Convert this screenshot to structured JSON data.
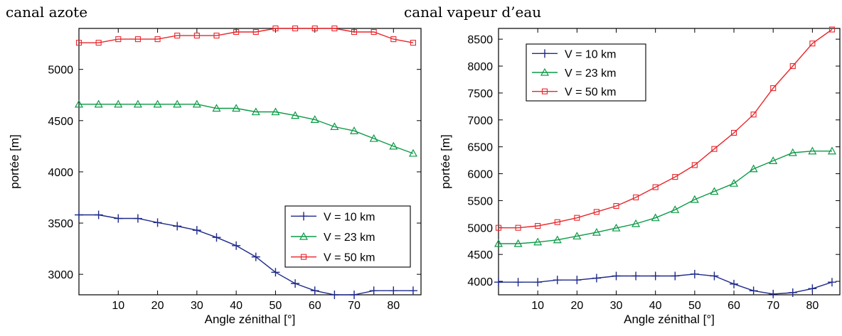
{
  "chart_data": [
    {
      "type": "line",
      "title": "canal azote",
      "xlabel": "Angle zénithal [°]",
      "ylabel": "portée [m]",
      "xlim": [
        0,
        87
      ],
      "ylim": [
        2800,
        5400
      ],
      "xticks": [
        10,
        20,
        30,
        40,
        50,
        60,
        70,
        80
      ],
      "yticks": [
        3000,
        3500,
        4000,
        4500,
        5000
      ],
      "legend_position": "lower-right",
      "x": [
        0,
        5,
        10,
        15,
        20,
        25,
        30,
        35,
        40,
        45,
        50,
        55,
        60,
        65,
        70,
        75,
        80,
        85
      ],
      "series": [
        {
          "name": "V = 10 km",
          "color": "#1f2a8a",
          "marker": "plus",
          "values": [
            3580,
            3580,
            3545,
            3545,
            3505,
            3470,
            3430,
            3360,
            3280,
            3170,
            3020,
            2910,
            2840,
            2800,
            2800,
            2840,
            2840,
            2840
          ]
        },
        {
          "name": "V = 23 km",
          "color": "#0b9a45",
          "marker": "triangle",
          "values": [
            4660,
            4660,
            4660,
            4660,
            4660,
            4660,
            4660,
            4620,
            4620,
            4585,
            4585,
            4550,
            4510,
            4440,
            4400,
            4325,
            4250,
            4180
          ]
        },
        {
          "name": "V = 50 km",
          "color": "#e8262b",
          "marker": "square",
          "values": [
            5260,
            5260,
            5295,
            5295,
            5295,
            5330,
            5330,
            5330,
            5365,
            5365,
            5400,
            5400,
            5400,
            5400,
            5365,
            5365,
            5295,
            5260
          ]
        }
      ]
    },
    {
      "type": "line",
      "title": "canal vapeur d’eau",
      "xlabel": "Angle zénithal [°]",
      "ylabel": "portée [m]",
      "xlim": [
        0,
        87
      ],
      "ylim": [
        3750,
        8700
      ],
      "xticks": [
        10,
        20,
        30,
        40,
        50,
        60,
        70,
        80
      ],
      "yticks": [
        4000,
        4500,
        5000,
        5500,
        6000,
        6500,
        7000,
        7500,
        8000,
        8500
      ],
      "legend_position": "upper-left",
      "x": [
        0,
        5,
        10,
        15,
        20,
        25,
        30,
        35,
        40,
        45,
        50,
        55,
        60,
        65,
        70,
        75,
        80,
        85
      ],
      "series": [
        {
          "name": "V = 10 km",
          "color": "#1f2a8a",
          "marker": "plus",
          "values": [
            3985,
            3985,
            3985,
            4025,
            4025,
            4060,
            4100,
            4100,
            4100,
            4100,
            4135,
            4100,
            3950,
            3825,
            3765,
            3790,
            3865,
            3985
          ]
        },
        {
          "name": "V = 23 km",
          "color": "#0b9a45",
          "marker": "triangle",
          "values": [
            4700,
            4700,
            4730,
            4770,
            4840,
            4910,
            4990,
            5070,
            5180,
            5330,
            5520,
            5670,
            5820,
            6090,
            6240,
            6390,
            6420,
            6420
          ]
        },
        {
          "name": "V = 50 km",
          "color": "#e8262b",
          "marker": "square",
          "values": [
            4995,
            4995,
            5030,
            5100,
            5180,
            5290,
            5400,
            5560,
            5750,
            5940,
            6160,
            6460,
            6760,
            7100,
            7590,
            8000,
            8420,
            8680
          ]
        }
      ]
    }
  ]
}
